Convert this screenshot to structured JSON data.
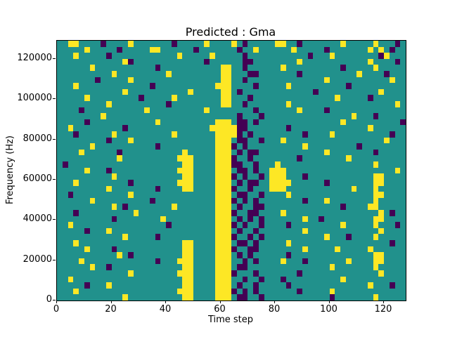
{
  "chart_data": {
    "type": "heatmap",
    "title": "Predicted : Gma",
    "xlabel": "Time step",
    "ylabel": "Frequency (Hz)",
    "x_range": [
      0,
      128
    ],
    "y_range": [
      0,
      129000
    ],
    "x_ticks": [
      0,
      20,
      40,
      60,
      80,
      100,
      120
    ],
    "y_ticks": [
      0,
      20000,
      40000,
      60000,
      80000,
      100000,
      120000
    ],
    "colormap": "viridis",
    "legend": "none",
    "grid_on": false,
    "value_colors": {
      "0": "#440154",
      "1": "#21918c",
      "2": "#fde725"
    },
    "grid_cols": 64,
    "grid_rows": 43,
    "cell_time_span": 2,
    "cell_freq_span": 3000,
    "rows_top_to_bottom": [
      "1122111101111211111110111112111121011111221101111111211111211101",
      "1111121111101111122111111011111110112111111211111011111112121011",
      "1112111110111111111111211111211111011111111111011121111111102111",
      "1111111111112011111111111110111111001111111121111111111112111101",
      "1111112111111111110111111111112211011111121111111111011111211111",
      "1111111111211111111121111111112211100111111101111111111211110111",
      "1111111011111211111111111111112211011111111111111211111111111211",
      "1112111111111111101111111111122211110111112111111111101111111111",
      "1111111111112111111111112111112210111111111111101111111111121111",
      "1111121111111110111112111111112211101111111111111112111110111111",
      "1111111112111111111101111111112211011111112111111111111111111121",
      "1111011111111111211111111112111111110111111121111011111111111111",
      "1111111121111111111111111111111110111011111111111111112111011111",
      "1111101111111111112111111111122210010111111111111111211111111110",
      "1121111111110111111111111111222220011111110111111111111112111111",
      "1110111111211111111112111111122220101111111110111121111111111011",
      "1111111110111211111111111111122210011011121111111111111111112111",
      "1111112111111111110111111111122201011111111112111111111011111111",
      "1111211111101111111111121111122210100111111111111211111111011111",
      "1111111111121111111111222111122201101111111101111111121111111111",
      "1011111111111111111111122111122200110111211111111111111111211111",
      "1111121110111111111111222111122210010112221111111111111111111121",
      "1111111111211111111111122111122201011012221110111111111111221111",
      "1112111111111011111111222111122210100112222111111011111111221111",
      "1111111112111111110111122111122201101112221111111111112111211111",
      "1101111111111211111111111111122210011011112111111111111111221111",
      "1111112111111111101111111111122201010111111110111211111111211111",
      "1111111111210111111112111111122210110011111111111111011112211111",
      "1110111111111121111111111111122201100111121111111111111111121011",
      "1111111111011111111211111111122210101011111112110111111111221111",
      "1121111111111111111101111111122201011011110111111111211111211101",
      "1111101112111111111111111111122210110111111112111111111111121111",
      "1111111111112111110111111111122201101011111111111211101111211111",
      "1112111111111111111111122111122210010111112111111111111111111011",
      "1111121111011111111111122111122201100111111112111112111112111111",
      "1111111111121011111111122111122210101111110111111111111111221111",
      "1111211111111111110111222111122211010111121110111111121111221111",
      "1111112110111111111111122111122210011111111111111121111111211111",
      "1111111111111211111111222111122201110111111101111111111111121111",
      "1121111111111111111111122111122211011011101111111111211111111111",
      "1111101112111111111111122111122210110111110111111111111112111011",
      "1112111111111111111111222111122201010111111101111121111111111111",
      "1111111111112111111111122111122210011011111111111101111111211111"
    ]
  }
}
